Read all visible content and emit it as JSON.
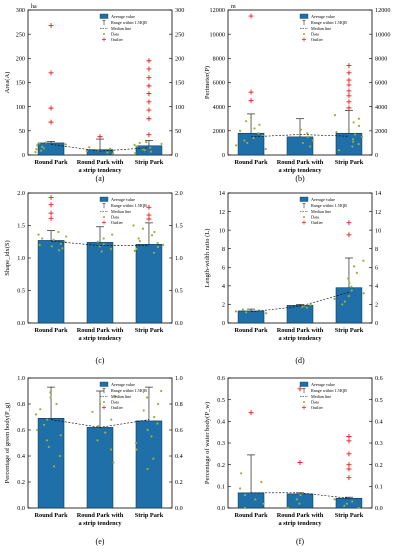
{
  "colors": {
    "bar": "#1f6fa8",
    "bar_edge": "#0d3a5c",
    "data_point": "#9aae3c",
    "outlier": "#e8201c",
    "median_line": "#000000"
  },
  "legend_labels": {
    "average": "Average value",
    "range": "Range within 1.5IQR",
    "median": "Median line",
    "data": "Data",
    "outlier": "Outlier"
  },
  "chart_data": [
    {
      "panel": "(a)",
      "type": "bar",
      "ylabel": "Area(A)",
      "unit": "ha",
      "categories": [
        "Round Park",
        "Round Park with a strip tendency",
        "Strip Park"
      ],
      "category_lines": [
        [
          "Round Park"
        ],
        [
          "Round Park with",
          "a strip tendency"
        ],
        [
          "Strip Park"
        ]
      ],
      "ylim": [
        0,
        300
      ],
      "yticks": [
        0,
        50,
        100,
        150,
        200,
        250,
        300
      ],
      "values": [
        25,
        11,
        19
      ],
      "whisker_upper": [
        28,
        33,
        30
      ],
      "medians": [
        22,
        8,
        15
      ],
      "outliers": [
        [
          268,
          170,
          97,
          68
        ],
        [
          38
        ],
        [
          195,
          178,
          160,
          143,
          127,
          110,
          93,
          75,
          42
        ]
      ],
      "data_points": [
        [
          6,
          9,
          12,
          14,
          17,
          20,
          22,
          24,
          26
        ],
        [
          3,
          5,
          8,
          10,
          13,
          16
        ],
        [
          4,
          7,
          10,
          12,
          15,
          18,
          21,
          23,
          25,
          27
        ]
      ]
    },
    {
      "panel": "(b)",
      "type": "bar",
      "ylabel": "Perimeter(P)",
      "unit": "m",
      "categories": [
        "Round Park",
        "Round Park with a strip tendency",
        "Strip Park"
      ],
      "category_lines": [
        [
          "Round Park"
        ],
        [
          "Round Park with",
          "a strip tendency"
        ],
        [
          "Strip Park"
        ]
      ],
      "ylim": [
        0,
        12000
      ],
      "yticks": [
        0,
        2000,
        4000,
        6000,
        8000,
        10000,
        12000
      ],
      "values": [
        1800,
        1500,
        1800
      ],
      "whisker_upper": [
        3400,
        3000,
        3700
      ],
      "medians": [
        1500,
        1700,
        1550
      ],
      "outliers": [
        [
          11500,
          5200,
          4500
        ],
        [],
        [
          7400,
          6800,
          6200,
          5800,
          5300,
          4900,
          4400,
          3900
        ]
      ],
      "data_points": [
        [
          500,
          800,
          1000,
          1200,
          1400,
          1600,
          1800,
          2000,
          2200,
          2500,
          2800,
          3100
        ],
        [
          700,
          1000,
          1200,
          1500,
          1800,
          2100
        ],
        [
          400,
          700,
          900,
          1100,
          1300,
          1500,
          1700,
          1900,
          2100,
          2400,
          2700,
          3000,
          3300
        ]
      ]
    },
    {
      "panel": "(c)",
      "type": "bar",
      "ylabel": "Shape_idx(S)",
      "unit": "",
      "categories": [
        "Round Park",
        "Round Park with a strip tendency",
        "Strip Park"
      ],
      "category_lines": [
        [
          "Round Park"
        ],
        [
          "Round Park with",
          "a strip tendency"
        ],
        [
          "Strip Park"
        ]
      ],
      "ylim": [
        0,
        2.0
      ],
      "yticks": [
        0.0,
        0.5,
        1.0,
        1.5,
        2.0
      ],
      "values": [
        1.27,
        1.24,
        1.21
      ],
      "whisker_upper": [
        1.42,
        1.48,
        1.54
      ],
      "medians": [
        1.26,
        1.19,
        1.19
      ],
      "outliers": [
        [
          1.93,
          1.82,
          1.69,
          1.61
        ],
        [],
        [
          1.78,
          1.66,
          1.6
        ]
      ],
      "data_points": [
        [
          1.12,
          1.15,
          1.18,
          1.2,
          1.22,
          1.25,
          1.28,
          1.3,
          1.33,
          1.36,
          1.4
        ],
        [
          1.1,
          1.14,
          1.18,
          1.21,
          1.25,
          1.3,
          1.36
        ],
        [
          1.08,
          1.11,
          1.14,
          1.17,
          1.2,
          1.23,
          1.26,
          1.3,
          1.35,
          1.4,
          1.45,
          1.5
        ]
      ]
    },
    {
      "panel": "(d)",
      "type": "bar",
      "ylabel": "Length-width ratio (L)",
      "unit": "",
      "categories": [
        "Round Park",
        "Round Park with a strip tendency",
        "Strip Park"
      ],
      "category_lines": [
        [
          "Round Park"
        ],
        [
          "Round Park with",
          "a strip tendency"
        ],
        [
          "Strip Park"
        ]
      ],
      "ylim": [
        0,
        14
      ],
      "yticks": [
        0,
        2,
        4,
        6,
        8,
        10,
        12,
        14
      ],
      "values": [
        1.3,
        1.9,
        3.8
      ],
      "whisker_upper": [
        1.5,
        2.0,
        7.0
      ],
      "medians": [
        1.2,
        1.8,
        3.3
      ],
      "outliers": [
        [],
        [],
        [
          10.8,
          9.5
        ]
      ],
      "data_points": [
        [
          1.05,
          1.15,
          1.25,
          1.35,
          1.45
        ],
        [
          1.65,
          1.75,
          1.85,
          1.95
        ],
        [
          2.0,
          2.3,
          2.6,
          2.9,
          3.2,
          3.5,
          3.9,
          4.3,
          4.8,
          5.4,
          6.1,
          6.7
        ]
      ]
    },
    {
      "panel": "(e)",
      "type": "bar",
      "ylabel": "Percentage of green body(P_g)",
      "unit": "",
      "categories": [
        "Round Park",
        "Round Park with a strip tendency",
        "Strip Park"
      ],
      "category_lines": [
        [
          "Round Park"
        ],
        [
          "Round Park with",
          "a strip tendency"
        ],
        [
          "Strip Park"
        ]
      ],
      "ylim": [
        0,
        1.0
      ],
      "yticks": [
        0.0,
        0.2,
        0.4,
        0.6,
        0.8,
        1.0
      ],
      "values": [
        0.69,
        0.62,
        0.67
      ],
      "whisker_upper": [
        0.93,
        0.9,
        0.93
      ],
      "medians": [
        0.68,
        0.62,
        0.68
      ],
      "outliers": [
        [],
        [],
        []
      ],
      "data_points": [
        [
          0.32,
          0.4,
          0.47,
          0.52,
          0.56,
          0.6,
          0.64,
          0.68,
          0.72,
          0.76,
          0.8,
          0.85,
          0.89
        ],
        [
          0.35,
          0.45,
          0.52,
          0.58,
          0.63,
          0.68,
          0.74,
          0.8,
          0.86
        ],
        [
          0.3,
          0.38,
          0.45,
          0.5,
          0.55,
          0.6,
          0.65,
          0.7,
          0.75,
          0.8,
          0.85,
          0.9
        ]
      ]
    },
    {
      "panel": "(f)",
      "type": "bar",
      "ylabel": "Percentage of water body(P_w)",
      "unit": "",
      "categories": [
        "Round Park",
        "Round Park with a strip tendency",
        "Strip Park"
      ],
      "category_lines": [
        [
          "Round Park"
        ],
        [
          "Round Park with",
          "a strip tendency"
        ],
        [
          "Strip Park"
        ]
      ],
      "ylim": [
        0,
        0.6
      ],
      "yticks": [
        0.0,
        0.1,
        0.2,
        0.3,
        0.4,
        0.5,
        0.6
      ],
      "values": [
        0.07,
        0.065,
        0.045
      ],
      "whisker_upper": [
        0.245,
        0.07,
        0.05
      ],
      "medians": [
        0.07,
        0.07,
        0.045
      ],
      "outliers": [
        [
          0.44
        ],
        [
          0.55,
          0.21
        ],
        [
          0.33,
          0.31,
          0.25,
          0.2,
          0.18,
          0.14
        ]
      ],
      "data_points": [
        [
          0.0,
          0.02,
          0.04,
          0.06,
          0.09,
          0.12,
          0.16
        ],
        [
          0.0,
          0.02,
          0.04,
          0.06
        ],
        [
          0.0,
          0.01,
          0.02,
          0.03,
          0.04
        ]
      ]
    }
  ]
}
